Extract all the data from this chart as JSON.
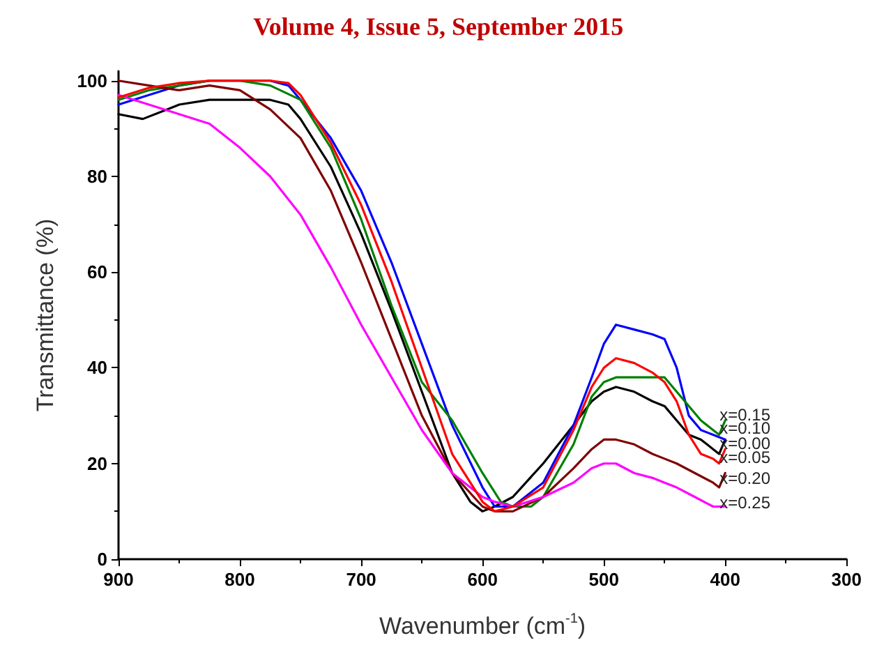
{
  "chart_data": {
    "type": "line",
    "annotations": [
      "Volume 4, Issue 5, September 2015"
    ],
    "xlabel": "Wavenumber (cm$^{-1}$)",
    "ylabel": "Transmittance (%)",
    "xlim": [
      900,
      300
    ],
    "xticks": [
      900,
      800,
      700,
      600,
      500,
      400,
      300
    ],
    "ylim": [
      0,
      102
    ],
    "yticks": [
      0,
      20,
      40,
      60,
      80,
      100
    ],
    "grid": false,
    "legend": false,
    "marker": "none",
    "line_style": "solid",
    "series": [
      {
        "name": "x=0.00",
        "color": "#000000",
        "x": [
          900,
          880,
          860,
          850,
          825,
          800,
          775,
          760,
          750,
          725,
          700,
          675,
          650,
          625,
          610,
          600,
          590,
          575,
          550,
          525,
          510,
          500,
          490,
          475,
          460,
          450,
          440,
          430,
          420,
          410,
          405,
          400
        ],
        "values": [
          93,
          92,
          94,
          95,
          96,
          96,
          96,
          95,
          92,
          82,
          68,
          52,
          35,
          18,
          12,
          10,
          11,
          13,
          20,
          28,
          33,
          35,
          36,
          35,
          33,
          32,
          29,
          26,
          25,
          23,
          22,
          25
        ]
      },
      {
        "name": "x=0.10",
        "color": "#0000ff",
        "x": [
          900,
          875,
          850,
          825,
          800,
          775,
          760,
          750,
          725,
          700,
          675,
          650,
          625,
          600,
          590,
          575,
          550,
          525,
          510,
          500,
          490,
          475,
          460,
          450,
          440,
          430,
          420,
          410,
          400
        ],
        "values": [
          95,
          97,
          99,
          100,
          100,
          100,
          99,
          96,
          88,
          77,
          62,
          45,
          28,
          15,
          11,
          11,
          16,
          28,
          38,
          45,
          49,
          48,
          47,
          46,
          40,
          30,
          27,
          26,
          25
        ]
      },
      {
        "name": "x=0.15",
        "color": "#008000",
        "x": [
          900,
          875,
          850,
          825,
          800,
          775,
          750,
          725,
          700,
          675,
          650,
          625,
          600,
          585,
          575,
          560,
          550,
          525,
          510,
          500,
          490,
          475,
          460,
          450,
          440,
          420,
          410,
          405,
          400
        ],
        "values": [
          96,
          98,
          99,
          100,
          100,
          99,
          96,
          86,
          71,
          53,
          37,
          29,
          18,
          12,
          11,
          11,
          13,
          24,
          34,
          37,
          38,
          38,
          38,
          38,
          35,
          29,
          27,
          26,
          29
        ]
      },
      {
        "name": "x=0.20",
        "color": "#800000",
        "x": [
          900,
          875,
          850,
          825,
          800,
          775,
          750,
          725,
          700,
          675,
          650,
          625,
          600,
          590,
          575,
          550,
          525,
          510,
          500,
          490,
          475,
          460,
          450,
          440,
          425,
          410,
          405,
          400
        ],
        "values": [
          100,
          99,
          98,
          99,
          98,
          94,
          88,
          77,
          62,
          46,
          30,
          18,
          11,
          10,
          10,
          13,
          19,
          23,
          25,
          25,
          24,
          22,
          21,
          20,
          18,
          16,
          15,
          18
        ]
      },
      {
        "name": "x=0.25",
        "color": "#ff00ff",
        "x": [
          900,
          875,
          850,
          825,
          800,
          775,
          750,
          725,
          700,
          675,
          650,
          625,
          600,
          590,
          575,
          550,
          525,
          510,
          500,
          490,
          475,
          460,
          450,
          440,
          425,
          410,
          400
        ],
        "values": [
          97,
          95,
          93,
          91,
          86,
          80,
          72,
          61,
          49,
          38,
          27,
          18,
          13,
          12,
          11,
          13,
          16,
          19,
          20,
          20,
          18,
          17,
          16,
          15,
          13,
          11,
          11
        ]
      },
      {
        "name": "x=0.05",
        "color": "#ff0000",
        "x": [
          900,
          875,
          850,
          825,
          800,
          775,
          760,
          750,
          725,
          700,
          675,
          650,
          625,
          600,
          590,
          575,
          550,
          525,
          510,
          500,
          490,
          475,
          460,
          450,
          440,
          430,
          420,
          410,
          405,
          400
        ],
        "values": [
          96.5,
          98.5,
          99.5,
          100,
          100,
          100,
          99.5,
          97,
          87,
          74,
          58,
          40,
          22,
          12,
          10,
          11,
          15,
          27,
          36,
          40,
          42,
          41,
          39,
          37,
          33,
          26,
          22,
          21,
          20,
          23
        ]
      }
    ]
  }
}
